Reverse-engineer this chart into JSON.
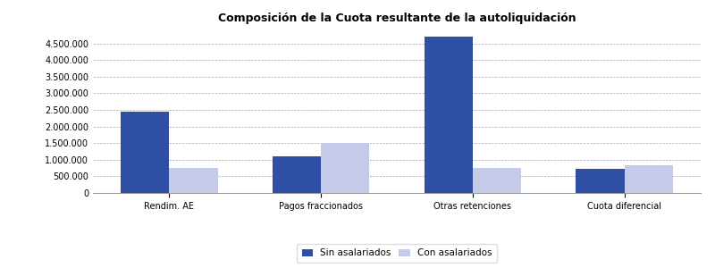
{
  "title": "Composición de la Cuota resultante de la autoliquidación",
  "categories": [
    "Rendim. AE",
    "Pagos fraccionados",
    "Otras retenciones",
    "Cuota diferencial"
  ],
  "sin_asalariados": [
    2450000,
    1100000,
    4700000,
    720000
  ],
  "con_asalariados": [
    750000,
    1500000,
    750000,
    820000
  ],
  "color_sin": "#2E4FA3",
  "color_con": "#C5CAE9",
  "legend_labels": [
    "Sin asalariados",
    "Con asalariados"
  ],
  "ylim": [
    0,
    5000000
  ],
  "yticks": [
    0,
    500000,
    1000000,
    1500000,
    2000000,
    2500000,
    3000000,
    3500000,
    4000000,
    4500000
  ],
  "bar_width": 0.32,
  "background_color": "#ffffff",
  "title_fontsize": 9,
  "tick_fontsize": 7,
  "legend_fontsize": 7.5
}
